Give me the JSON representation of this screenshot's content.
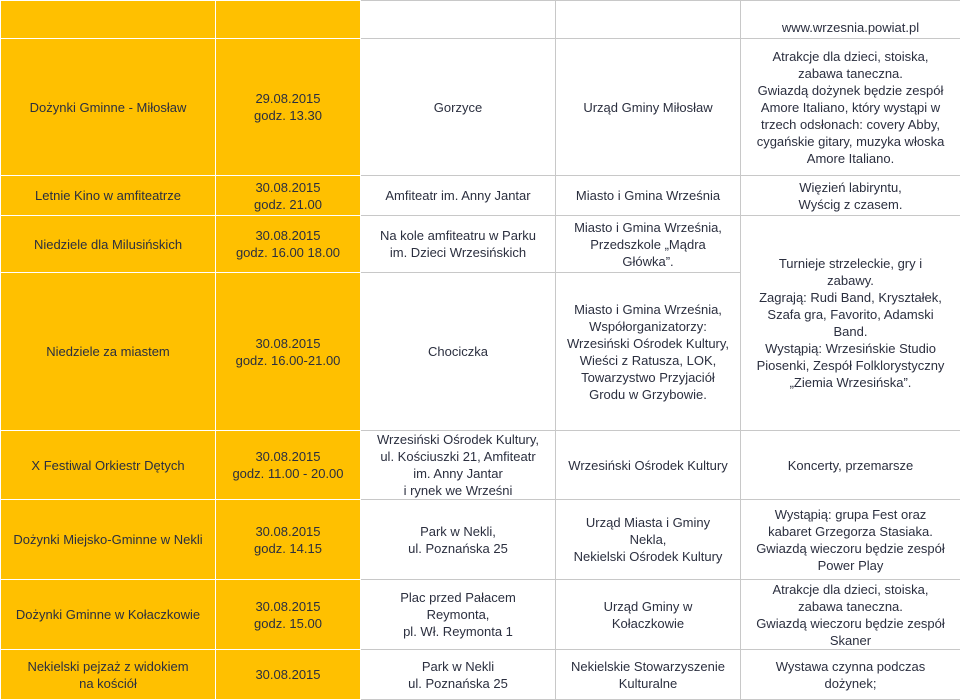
{
  "header": {
    "url": "www.wrzesnia.powiat.pl"
  },
  "rows": [
    {
      "event": [
        "Dożynki Gminne - Miłosław"
      ],
      "date": [
        "29.08.2015",
        "godz. 13.30"
      ],
      "place": [
        "Gorzyce"
      ],
      "organizer": [
        "Urząd Gminy Miłosław"
      ],
      "description": [
        "Atrakcje dla dzieci, stoiska,",
        "zabawa taneczna.",
        "Gwiazdą dożynek będzie zespół",
        "Amore Italiano, który wystąpi w",
        "trzech odsłonach: covery Abby,",
        "cygańskie gitary, muzyka włoska",
        "Amore Italiano."
      ]
    },
    {
      "event": [
        "Letnie Kino w amfiteatrze"
      ],
      "date": [
        "30.08.2015",
        "godz. 21.00"
      ],
      "place": [
        "Amfiteatr im. Anny Jantar"
      ],
      "organizer": [
        "Miasto i Gmina Września"
      ],
      "description": [
        "Więzień labiryntu,",
        "Wyścig z czasem."
      ]
    },
    {
      "event": [
        "Niedziele dla Milusińskich"
      ],
      "date": [
        "30.08.2015",
        "godz. 16.00 18.00"
      ],
      "place": [
        "Na kole amfiteatru w Parku",
        "im. Dzieci Wrzesińskich"
      ],
      "organizer": [
        "Miasto i Gmina Września,",
        "Przedszkole „Mądra",
        "Główka”."
      ],
      "description": [
        "Turnieje strzeleckie, gry i",
        "zabawy.",
        "Zagrają: Rudi Band, Kryształek,",
        "Szafa gra, Favorito, Adamski",
        "Band.",
        "Wystąpią: Wrzesińskie Studio",
        "Piosenki, Zespół Folklorystyczny",
        "„Ziemia Wrzesińska”."
      ]
    },
    {
      "event": [
        "Niedziele za miastem"
      ],
      "date": [
        "30.08.2015",
        "godz. 16.00-21.00"
      ],
      "place": [
        "Chociczka"
      ],
      "organizer": [
        "Miasto i Gmina Września,",
        "Współorganizatorzy:",
        "Wrzesiński Ośrodek Kultury,",
        "Wieści z Ratusza, LOK,",
        "Towarzystwo Przyjaciół",
        "Grodu w Grzybowie."
      ]
    },
    {
      "event": [
        "X Festiwal Orkiestr Dętych"
      ],
      "date": [
        "30.08.2015",
        "godz. 11.00 - 20.00"
      ],
      "place": [
        "Wrzesiński Ośrodek Kultury,",
        "ul. Kościuszki 21, Amfiteatr",
        "im. Anny Jantar",
        "i rynek we Wrześni"
      ],
      "organizer": [
        "Wrzesiński Ośrodek Kultury"
      ],
      "description": [
        "Koncerty, przemarsze"
      ]
    },
    {
      "event": [
        "Dożynki Miejsko-Gminne w Nekli"
      ],
      "date": [
        "30.08.2015",
        "godz. 14.15"
      ],
      "place": [
        "Park w Nekli,",
        "ul. Poznańska 25"
      ],
      "organizer": [
        "Urząd Miasta i Gminy",
        "Nekla,",
        "Nekielski Ośrodek Kultury"
      ],
      "description": [
        "Wystąpią: grupa Fest oraz",
        "kabaret Grzegorza Stasiaka.",
        "Gwiazdą wieczoru będzie zespół",
        "Power Play"
      ]
    },
    {
      "event": [
        "Dożynki Gminne w Kołaczkowie"
      ],
      "date": [
        "30.08.2015",
        "godz. 15.00"
      ],
      "place": [
        "Plac przed Pałacem",
        "Reymonta,",
        "pl. Wł. Reymonta 1"
      ],
      "organizer": [
        "Urząd Gminy w",
        "Kołaczkowie"
      ],
      "description": [
        "Atrakcje dla dzieci, stoiska,",
        "zabawa taneczna.",
        "Gwiazdą wieczoru będzie zespół",
        "Skaner"
      ]
    },
    {
      "event": [
        "Nekielski pejzaż z widokiem",
        "na kościół"
      ],
      "date": [
        "30.08.2015"
      ],
      "place": [
        "Park w Nekli",
        "ul. Poznańska 25"
      ],
      "organizer": [
        "Nekielskie Stowarzyszenie",
        "Kulturalne"
      ],
      "description": [
        "Wystawa czynna podczas",
        "dożynek;"
      ]
    }
  ]
}
